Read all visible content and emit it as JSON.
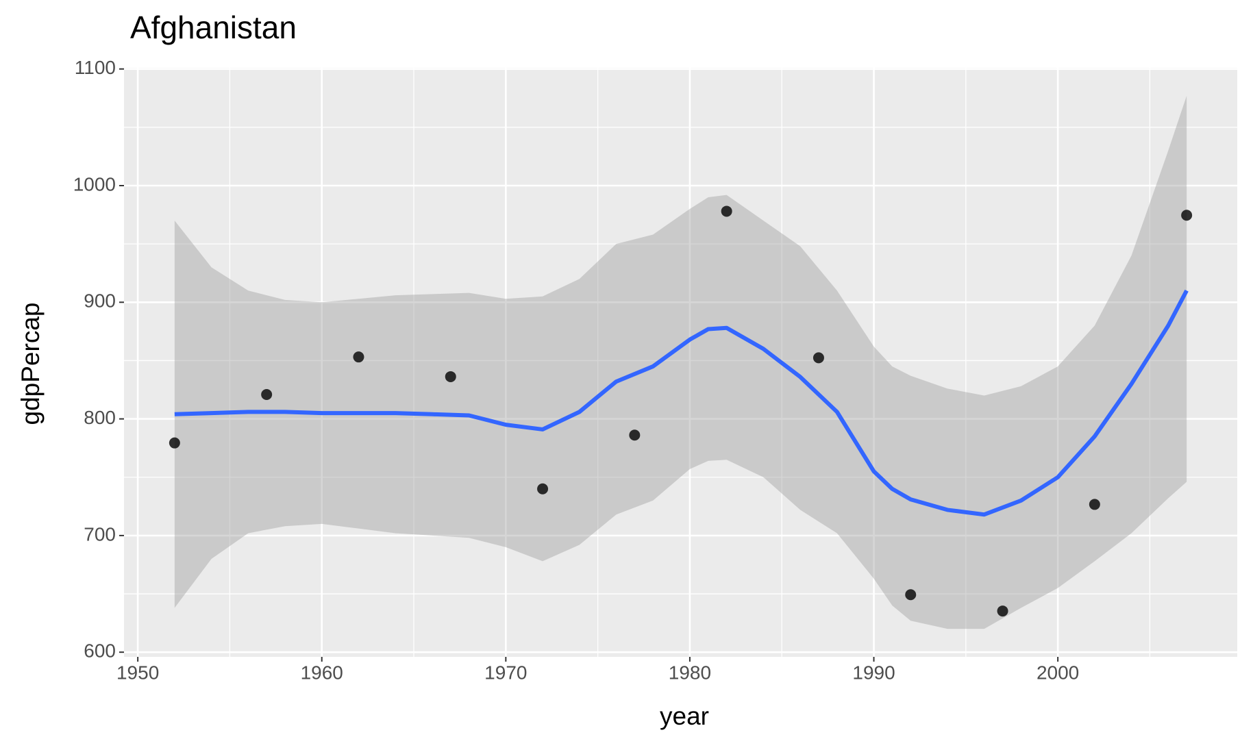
{
  "chart_data": {
    "type": "scatter",
    "title": "Afghanistan",
    "x_label": "year",
    "y_label": "gdpPercap",
    "xlim": [
      1949.25,
      2009.75
    ],
    "ylim": [
      596,
      1101
    ],
    "xticks": [
      1950,
      1960,
      1970,
      1980,
      1990,
      2000
    ],
    "yticks": [
      600,
      700,
      800,
      900,
      1000,
      1100
    ],
    "grid": true,
    "points": {
      "color": "#000000",
      "x": [
        1952,
        1957,
        1962,
        1967,
        1972,
        1977,
        1982,
        1987,
        1992,
        1997,
        2002,
        2007
      ],
      "y": [
        779.4,
        820.9,
        853.1,
        836.2,
        740.0,
        786.1,
        978.0,
        852.4,
        649.3,
        635.3,
        726.7,
        974.6
      ]
    },
    "smooth": {
      "color": "#3366ff",
      "band_color": "#999999",
      "x": [
        1952,
        1954,
        1956,
        1958,
        1960,
        1962,
        1964,
        1966,
        1968,
        1970,
        1972,
        1974,
        1976,
        1978,
        1980,
        1981,
        1982,
        1984,
        1986,
        1988,
        1990,
        1991,
        1992,
        1994,
        1996,
        1998,
        2000,
        2002,
        2004,
        2006,
        2007
      ],
      "y": [
        804,
        805,
        806,
        806,
        805,
        805,
        805,
        804,
        803,
        795,
        791,
        806,
        832,
        845,
        868,
        877,
        878,
        860,
        836,
        806,
        755,
        740,
        731,
        722,
        718,
        730,
        750,
        785,
        830,
        880,
        910
      ],
      "ymax": [
        970,
        930,
        910,
        902,
        900,
        903,
        906,
        907,
        908,
        903,
        905,
        920,
        950,
        958,
        980,
        990,
        992,
        970,
        948,
        910,
        862,
        845,
        837,
        826,
        820,
        828,
        845,
        880,
        940,
        1030,
        1077
      ],
      "ymin": [
        638,
        680,
        702,
        708,
        710,
        706,
        702,
        700,
        698,
        690,
        678,
        692,
        718,
        730,
        757,
        764,
        765,
        750,
        722,
        702,
        663,
        640,
        627,
        620,
        620,
        638,
        655,
        678,
        702,
        732,
        746
      ]
    }
  }
}
